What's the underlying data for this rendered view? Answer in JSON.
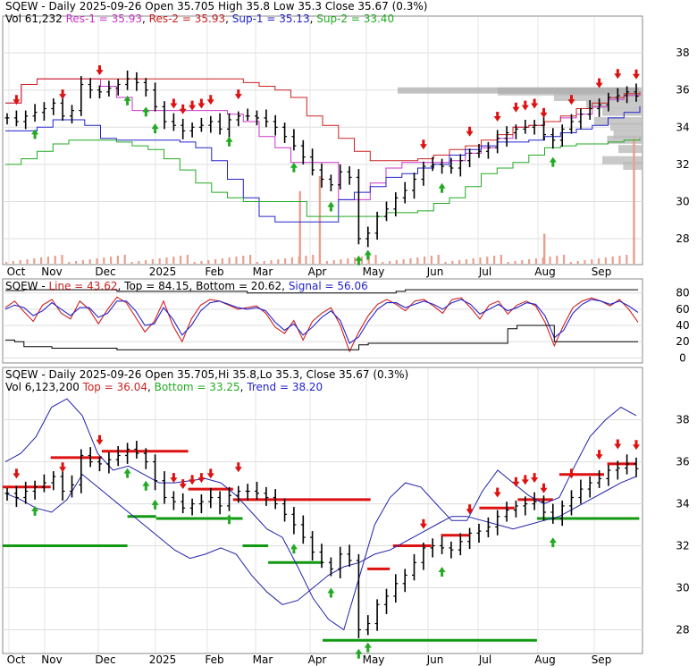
{
  "chart_data": [
    {
      "type": "ohlc",
      "panel": "price",
      "header": {
        "symbol": "SQEW",
        "period": "Daily",
        "date": "2025-09-26",
        "open": "Open 35.705",
        "high": "High 35.8",
        "low": "Low 35.3",
        "close": "Close 35.67 (0.3%)",
        "vol": "Vol 61,232",
        "res1": "Res-1 = 35.93",
        "res2": "Res-2 = 35.93",
        "sup1": "Sup-1 = 35.13",
        "sup2": "Sup-2 = 33.40"
      },
      "ylim": [
        26.8,
        39.4
      ],
      "y_ticks": [
        "28",
        "30",
        "32",
        "34",
        "36",
        "38"
      ],
      "x_labels": [
        "Oct",
        "Nov",
        "Dec",
        "2025",
        "Feb",
        "Mar",
        "Apr",
        "May",
        "Jun",
        "Jul",
        "Aug",
        "Sep"
      ],
      "series_close": [
        34.5,
        34.3,
        34.6,
        34.8,
        35.0,
        35.3,
        34.6,
        34.9,
        36.3,
        36.0,
        35.9,
        36.1,
        36.3,
        36.6,
        36.4,
        36.0,
        35.1,
        34.3,
        34.1,
        33.8,
        34.0,
        34.1,
        34.3,
        33.9,
        34.4,
        34.6,
        34.6,
        34.5,
        34.3,
        34.0,
        33.5,
        33.0,
        32.4,
        31.7,
        31.2,
        30.9,
        31.6,
        31.3,
        28.0,
        28.3,
        29.2,
        29.6,
        30.2,
        30.6,
        31.2,
        31.9,
        32.0,
        31.9,
        31.8,
        32.2,
        32.6,
        32.7,
        32.9,
        33.4,
        33.7,
        33.9,
        34.0,
        34.1,
        33.6,
        33.3,
        33.9,
        34.3,
        34.7,
        35.0,
        35.2,
        35.6,
        35.7,
        35.9,
        35.67
      ],
      "overlays": [
        {
          "name": "Res-1",
          "color": "#cc33cc",
          "values": [
            35.3,
            36.3,
            36.6,
            36.6,
            36.6,
            36.6,
            36.2,
            35.6,
            34.9,
            34.9,
            34.9,
            34.9,
            34.9,
            34.9,
            34.7,
            34.3,
            33.5,
            32.9,
            32.1,
            32.1,
            32.1,
            30.1,
            30.1,
            31.0,
            31.8,
            32.1,
            32.1,
            32.1,
            32.2,
            32.6,
            32.9,
            33.4,
            34.0,
            34.1,
            34.3,
            34.5,
            34.7,
            35.1,
            35.5,
            35.7,
            35.9
          ]
        },
        {
          "name": "Res-2",
          "color": "#cc2222",
          "values": [
            35.3,
            36.3,
            36.6,
            36.6,
            36.6,
            36.6,
            36.6,
            36.6,
            36.6,
            36.6,
            36.6,
            36.6,
            36.6,
            36.6,
            36.6,
            36.4,
            36.2,
            36.0,
            35.6,
            34.6,
            34.1,
            33.4,
            32.7,
            32.2,
            32.2,
            32.2,
            32.3,
            32.5,
            32.8,
            33.0,
            33.3,
            33.6,
            34.0,
            34.1,
            34.3,
            34.6,
            35.0,
            35.3,
            35.6,
            35.8,
            35.93
          ]
        },
        {
          "name": "Sup-1",
          "color": "#2222cc",
          "values": [
            33.8,
            33.8,
            34.0,
            34.4,
            34.4,
            34.1,
            33.4,
            33.3,
            33.3,
            33.3,
            33.3,
            33.2,
            32.9,
            32.2,
            31.2,
            30.2,
            29.2,
            28.9,
            28.9,
            28.9,
            28.9,
            30.1,
            30.5,
            30.8,
            31.3,
            31.5,
            31.8,
            32.0,
            32.5,
            32.8,
            33.0,
            33.2,
            33.2,
            33.3,
            33.5,
            33.7,
            33.9,
            34.1,
            34.5,
            34.8,
            35.13
          ]
        },
        {
          "name": "Sup-2",
          "color": "#22aa22",
          "values": [
            32.0,
            32.3,
            32.7,
            33.1,
            33.3,
            33.3,
            33.3,
            33.2,
            33.0,
            32.8,
            32.3,
            31.7,
            31.0,
            30.5,
            30.2,
            30.0,
            30.0,
            30.0,
            30.0,
            29.2,
            29.2,
            29.2,
            29.2,
            29.2,
            29.4,
            29.4,
            29.5,
            29.9,
            30.2,
            30.8,
            31.5,
            31.8,
            32.1,
            32.5,
            32.9,
            33.0,
            33.1,
            33.1,
            33.2,
            33.3,
            33.4
          ]
        }
      ],
      "volume_spikes": [
        {
          "position": 0.463,
          "level": 0.58
        },
        {
          "position": 0.494,
          "level": 0.7
        },
        {
          "position": 0.845,
          "level": 0.24
        },
        {
          "position": 0.985,
          "level": 1.0
        }
      ]
    },
    {
      "type": "line",
      "panel": "oscillator",
      "header": {
        "symbol": "SQEW",
        "line": "Line = 43.62",
        "top": "Top = 84.15",
        "bottom": "Bottom = 20.62",
        "signal": "Signal = 56.06"
      },
      "ylim": [
        -4,
        94
      ],
      "y_ticks": [
        "0",
        "20",
        "40",
        "60",
        "80"
      ],
      "series": [
        {
          "name": "Line",
          "color": "#cc2222",
          "values": [
            62,
            70,
            57,
            45,
            65,
            72,
            55,
            48,
            70,
            60,
            42,
            60,
            75,
            68,
            50,
            32,
            45,
            70,
            40,
            20,
            48,
            65,
            72,
            70,
            65,
            60,
            62,
            64,
            55,
            38,
            30,
            46,
            22,
            45,
            55,
            62,
            40,
            8,
            32,
            52,
            66,
            72,
            66,
            58,
            70,
            72,
            64,
            55,
            72,
            74,
            62,
            48,
            65,
            70,
            54,
            65,
            70,
            64,
            44,
            15,
            40,
            62,
            70,
            74,
            70,
            64,
            72,
            60,
            44
          ]
        },
        {
          "name": "Signal",
          "color": "#2222cc",
          "values": [
            60,
            65,
            62,
            52,
            58,
            68,
            60,
            52,
            62,
            62,
            50,
            55,
            70,
            70,
            58,
            40,
            42,
            62,
            48,
            28,
            40,
            58,
            68,
            70,
            66,
            62,
            60,
            62,
            58,
            44,
            34,
            42,
            28,
            38,
            50,
            58,
            46,
            18,
            26,
            45,
            60,
            68,
            68,
            62,
            66,
            70,
            66,
            60,
            68,
            72,
            66,
            54,
            60,
            66,
            58,
            62,
            68,
            66,
            52,
            25,
            34,
            55,
            66,
            72,
            70,
            66,
            70,
            64,
            56
          ]
        },
        {
          "name": "Top",
          "color": "#000000",
          "values": [
            83,
            83,
            84,
            84,
            84,
            84,
            84,
            84,
            84,
            84,
            84,
            84,
            82,
            82,
            82,
            82,
            82,
            82,
            82,
            82,
            82,
            82,
            82,
            82,
            82,
            82,
            80,
            80,
            80,
            80,
            80,
            80,
            80,
            80,
            80,
            80,
            80,
            80,
            80,
            80,
            80,
            80,
            82,
            84,
            84,
            84,
            84,
            84,
            84,
            84,
            84,
            84,
            84,
            84,
            84,
            84,
            84,
            84,
            84,
            84,
            84,
            84,
            84,
            84,
            84,
            84,
            84,
            84,
            84
          ]
        },
        {
          "name": "Bottom",
          "color": "#000000",
          "values": [
            22,
            20,
            14,
            14,
            14,
            12,
            12,
            12,
            12,
            12,
            12,
            12,
            10,
            10,
            10,
            10,
            10,
            10,
            10,
            10,
            10,
            10,
            10,
            10,
            10,
            10,
            10,
            10,
            10,
            10,
            10,
            10,
            10,
            10,
            10,
            10,
            10,
            10,
            16,
            18,
            18,
            18,
            18,
            18,
            18,
            18,
            18,
            18,
            18,
            18,
            18,
            18,
            18,
            18,
            36,
            40,
            40,
            40,
            40,
            20,
            20,
            20,
            20,
            20,
            20,
            20,
            20,
            20,
            20
          ]
        }
      ]
    },
    {
      "type": "ohlc",
      "panel": "bands",
      "header": {
        "symbol": "SQEW",
        "period": "Daily",
        "date": "2025-09-26",
        "open": "Open 35.705",
        "hi": "Hi 35.8",
        "lo": "Lo 35.3",
        "close": "Close 35.67 (0.3%)",
        "vol": "Vol 6,123,200",
        "top": "Top = 36.04",
        "bottom": "Bottom = 33.25",
        "trend": "Trend = 38.20"
      },
      "ylim": [
        27.0,
        39.6
      ],
      "y_ticks": [
        "28",
        "30",
        "32",
        "34",
        "36",
        "38"
      ],
      "x_labels": [
        "Oct",
        "Nov",
        "Dec",
        "2025",
        "Feb",
        "Mar",
        "Apr",
        "May",
        "Jun",
        "Jul",
        "Aug",
        "Sep"
      ],
      "band_upper": [
        36.0,
        36.4,
        37.2,
        38.6,
        39.0,
        38.2,
        36.4,
        35.6,
        35.8,
        35.4,
        35.0,
        35.0,
        35.1,
        35.2,
        35.0,
        34.4,
        33.6,
        32.8,
        32.4,
        31.0,
        29.5,
        28.5,
        28.0,
        30.5,
        33.0,
        34.3,
        35.0,
        34.8,
        34.0,
        33.2,
        33.2,
        34.6,
        35.6,
        35.0,
        34.4,
        34.0,
        34.3,
        35.8,
        37.2,
        38.0,
        38.6,
        38.2
      ],
      "band_lower": [
        34.5,
        34.2,
        33.8,
        33.6,
        34.2,
        35.4,
        34.8,
        34.2,
        33.6,
        33.0,
        32.4,
        31.8,
        31.4,
        31.6,
        31.9,
        31.6,
        30.6,
        29.8,
        29.2,
        29.4,
        30.0,
        30.6,
        31.0,
        31.2,
        31.6,
        31.8,
        32.2,
        32.6,
        33.0,
        33.4,
        33.4,
        33.2,
        33.0,
        32.8,
        33.0,
        33.2,
        33.4,
        33.8,
        34.2,
        34.6,
        35.0,
        35.3
      ],
      "red_levels": [
        {
          "y": 34.8,
          "from": 0.0,
          "to": 0.075
        },
        {
          "y": 36.2,
          "from": 0.075,
          "to": 0.155
        },
        {
          "y": 36.5,
          "from": 0.155,
          "to": 0.29
        },
        {
          "y": 34.7,
          "from": 0.29,
          "to": 0.36
        },
        {
          "y": 34.2,
          "from": 0.36,
          "to": 0.575
        },
        {
          "y": 30.9,
          "from": 0.57,
          "to": 0.605
        },
        {
          "y": 32.0,
          "from": 0.61,
          "to": 0.67
        },
        {
          "y": 32.5,
          "from": 0.685,
          "to": 0.73
        },
        {
          "y": 33.8,
          "from": 0.745,
          "to": 0.8
        },
        {
          "y": 34.2,
          "from": 0.805,
          "to": 0.86
        },
        {
          "y": 35.4,
          "from": 0.87,
          "to": 0.94
        },
        {
          "y": 35.9,
          "from": 0.945,
          "to": 0.99
        }
      ],
      "green_levels": [
        {
          "y": 32.0,
          "from": 0.0,
          "to": 0.195
        },
        {
          "y": 33.4,
          "from": 0.195,
          "to": 0.24
        },
        {
          "y": 33.3,
          "from": 0.24,
          "to": 0.375
        },
        {
          "y": 32.0,
          "from": 0.375,
          "to": 0.415
        },
        {
          "y": 31.2,
          "from": 0.415,
          "to": 0.5
        },
        {
          "y": 27.5,
          "from": 0.5,
          "to": 0.835
        },
        {
          "y": 33.3,
          "from": 0.835,
          "to": 0.995
        }
      ]
    }
  ]
}
